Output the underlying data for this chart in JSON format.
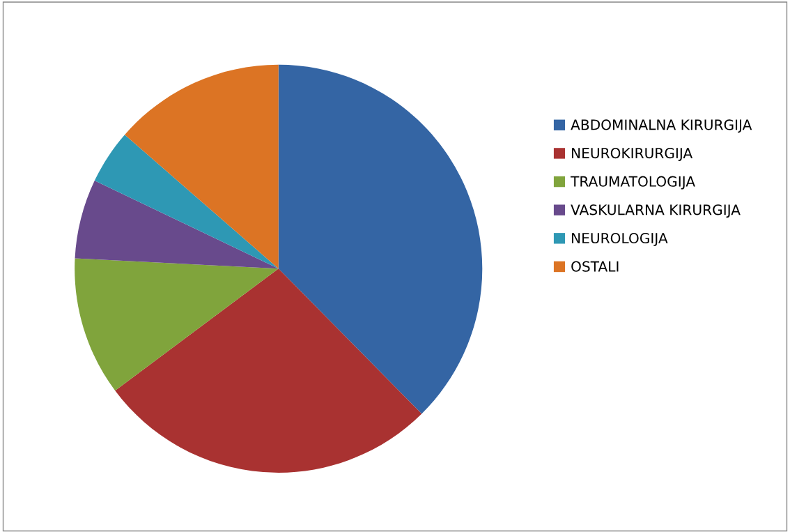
{
  "chart_data": {
    "type": "pie",
    "categories": [
      "ABDOMINALNA KIRURGIJA",
      "NEUROKIRURGIJA",
      "TRAUMATOLOGIJA",
      "VASKULARNA KIRURGIJA",
      "NEUROLOGIJA",
      "OSTALI"
    ],
    "values": [
      37.6,
      27.2,
      11.0,
      6.3,
      4.3,
      13.6
    ],
    "colors": [
      "#3465a4",
      "#a93231",
      "#80a43c",
      "#684a8c",
      "#2e98b4",
      "#dc7424"
    ],
    "legend": "right"
  }
}
